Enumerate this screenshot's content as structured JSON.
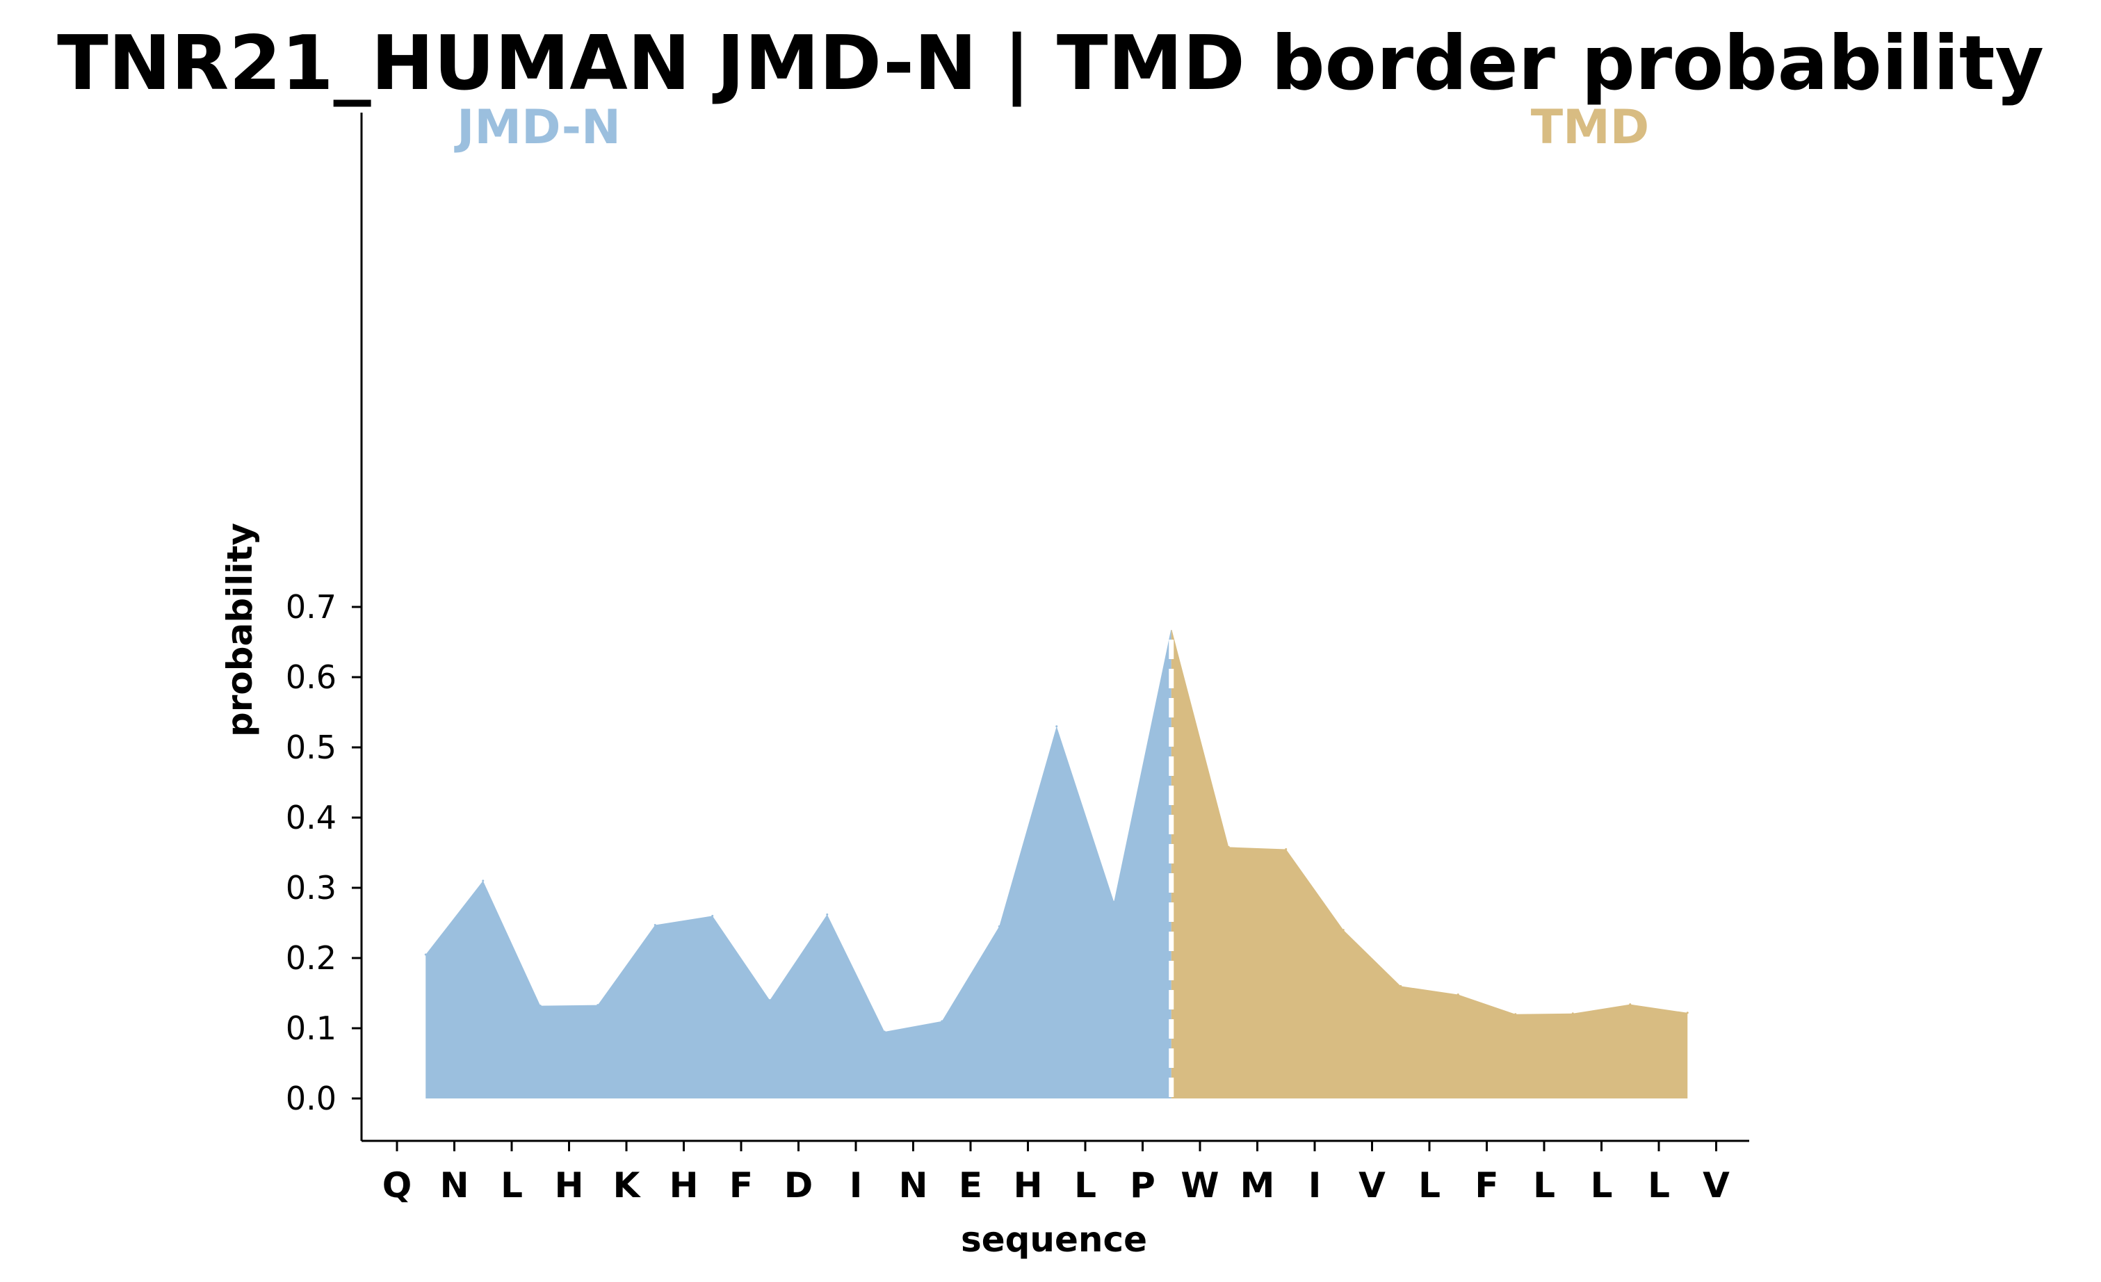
{
  "chart_data": {
    "type": "area",
    "title": "TNR21_HUMAN JMD-N | TMD border probability",
    "xlabel": "sequence",
    "ylabel": "probability",
    "ylim": [
      -0.03,
      0.7
    ],
    "yticks": [
      "0.0",
      "0.1",
      "0.2",
      "0.3",
      "0.4",
      "0.5",
      "0.6",
      "0.7"
    ],
    "xtick_labels": [
      "Q",
      "N",
      "L",
      "H",
      "K",
      "H",
      "F",
      "D",
      "I",
      "N",
      "E",
      "H",
      "L",
      "P",
      "W",
      "M",
      "I",
      "V",
      "L",
      "F",
      "L",
      "L",
      "L",
      "V"
    ],
    "region_labels": {
      "left": "JMD-N",
      "right": "TMD"
    },
    "border_x": 13.5,
    "grid": false,
    "series": [
      {
        "region": "JMD-N",
        "color": "#9bbfde",
        "x": [
          0.5,
          1.5,
          2.5,
          3.5,
          4.5,
          5.5,
          6.5,
          7.5,
          8.5,
          9.5,
          10.5,
          11.5,
          12.5,
          13.5
        ],
        "y": [
          0.205,
          0.31,
          0.132,
          0.133,
          0.247,
          0.26,
          0.14,
          0.262,
          0.095,
          0.11,
          0.245,
          0.53,
          0.28,
          0.67
        ]
      },
      {
        "region": "TMD",
        "color": "#d8bc82",
        "x": [
          13.5,
          14.5,
          15.5,
          16.5,
          17.5,
          18.5,
          19.5,
          20.5,
          21.5,
          22.5
        ],
        "y": [
          0.67,
          0.358,
          0.355,
          0.24,
          0.16,
          0.148,
          0.12,
          0.121,
          0.134,
          0.122
        ]
      }
    ],
    "border_line_color": "#ffffff"
  }
}
